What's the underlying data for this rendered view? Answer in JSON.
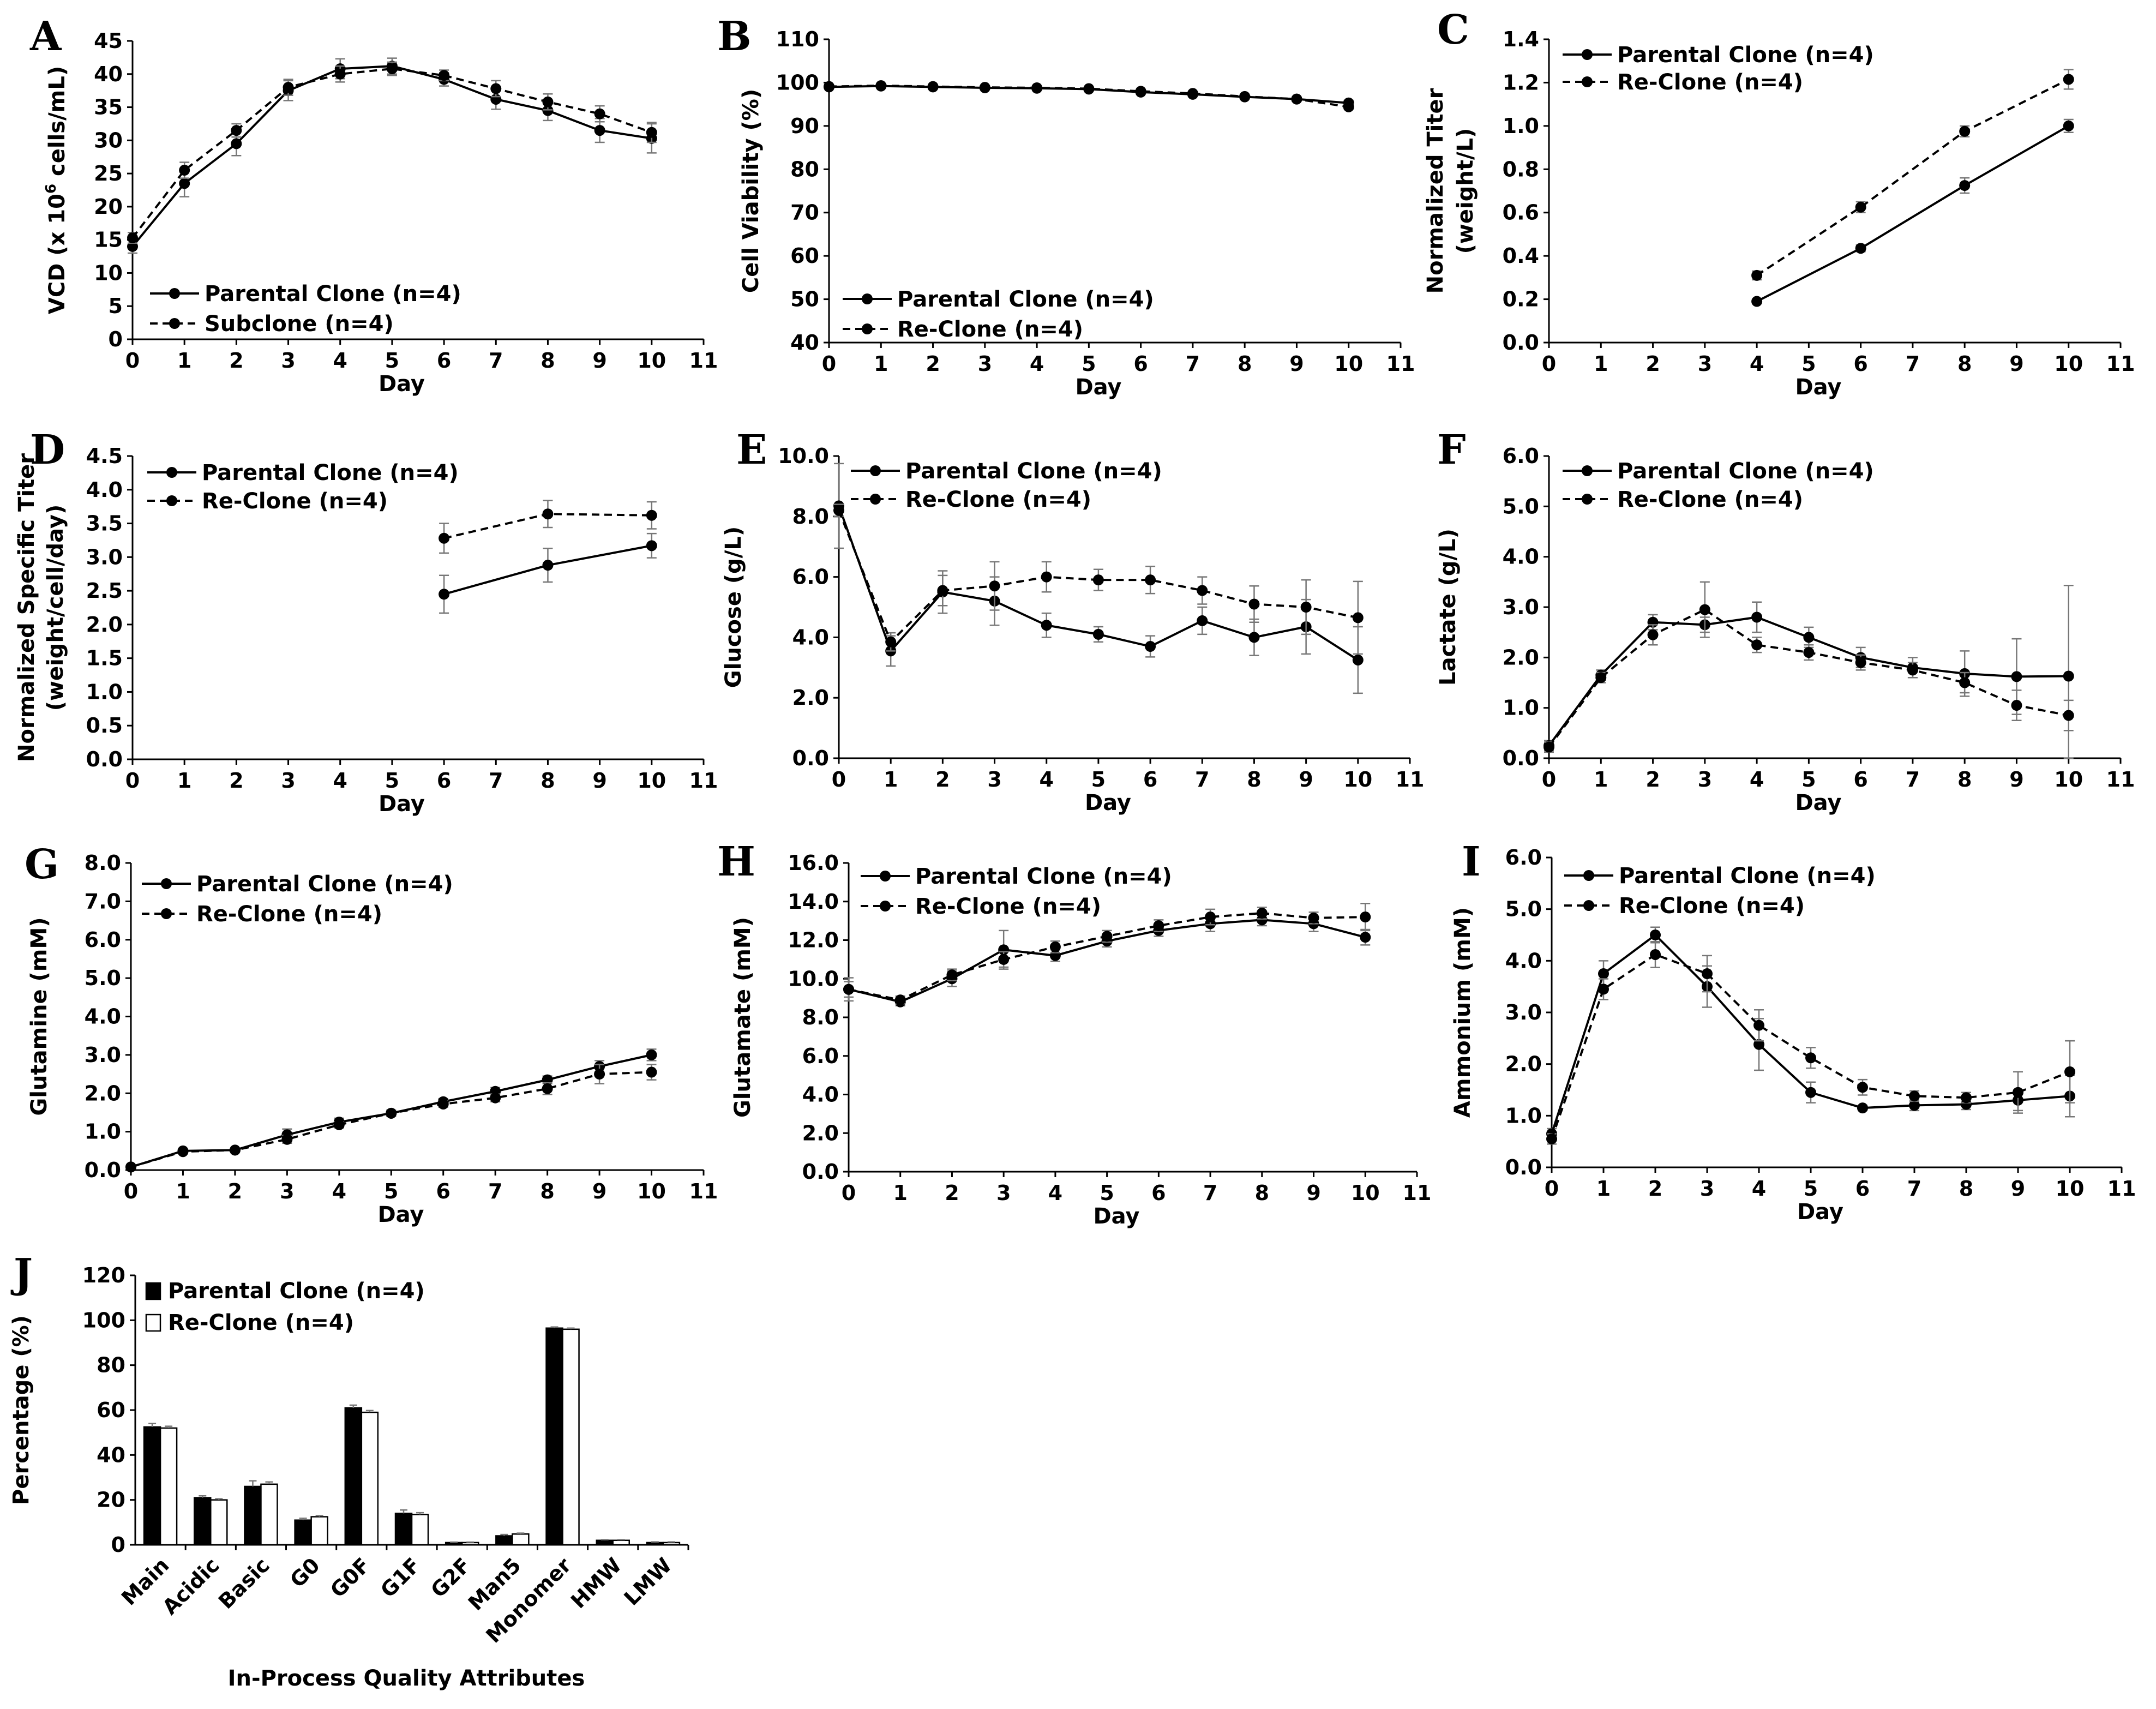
{
  "chart_data": [
    {
      "panel": "A",
      "type": "line",
      "xlabel": "Day",
      "ylabel_main": "VCD (x 10",
      "ylabel_sup": "6",
      "ylabel_tail": " cells/mL)",
      "xlim": [
        0,
        11
      ],
      "ylim": [
        0,
        45
      ],
      "xticks": [
        "0",
        "1",
        "2",
        "3",
        "4",
        "5",
        "6",
        "7",
        "8",
        "9",
        "10",
        "11"
      ],
      "yticks": [
        "0",
        "5",
        "10",
        "15",
        "20",
        "25",
        "30",
        "35",
        "40",
        "45"
      ],
      "legend_position": "bottom-left",
      "series": [
        {
          "name": "Parental Clone (n=4)",
          "style": "solid",
          "x": [
            0,
            1,
            2,
            3,
            4,
            5,
            6,
            7,
            8,
            9,
            10
          ],
          "y": [
            14.0,
            23.5,
            29.5,
            37.5,
            40.8,
            41.2,
            39.2,
            36.2,
            34.5,
            31.5,
            30.3
          ],
          "err": [
            1.0,
            2.0,
            1.8,
            1.5,
            1.5,
            1.2,
            1.0,
            1.5,
            1.5,
            1.8,
            2.2
          ]
        },
        {
          "name": "Subclone (n=4)",
          "style": "dashed",
          "x": [
            0,
            1,
            2,
            3,
            4,
            5,
            6,
            7,
            8,
            9,
            10
          ],
          "y": [
            15.3,
            25.5,
            31.5,
            38.0,
            40.0,
            40.8,
            39.8,
            37.8,
            35.8,
            34.0,
            31.2
          ],
          "err": [
            0.8,
            1.2,
            1.0,
            1.2,
            1.2,
            1.0,
            0.8,
            1.2,
            1.2,
            1.2,
            1.5
          ]
        }
      ]
    },
    {
      "panel": "B",
      "type": "line",
      "xlabel": "Day",
      "ylabel": "Cell Viability (%)",
      "xlim": [
        0,
        11
      ],
      "ylim": [
        40,
        110
      ],
      "xticks": [
        "0",
        "1",
        "2",
        "3",
        "4",
        "5",
        "6",
        "7",
        "8",
        "9",
        "10",
        "11"
      ],
      "yticks": [
        "40",
        "50",
        "60",
        "70",
        "80",
        "90",
        "100",
        "110"
      ],
      "legend_position": "bottom-left",
      "series": [
        {
          "name": "Parental Clone (n=4)",
          "style": "solid",
          "x": [
            0,
            1,
            2,
            3,
            4,
            5,
            6,
            7,
            8,
            9,
            10
          ],
          "y": [
            99.0,
            99.2,
            99.0,
            98.8,
            98.7,
            98.5,
            97.8,
            97.3,
            96.7,
            96.2,
            95.3
          ],
          "err": [
            0.3,
            0.3,
            0.3,
            0.3,
            0.3,
            0.3,
            0.4,
            0.4,
            0.4,
            0.5,
            0.6
          ]
        },
        {
          "name": "Re-Clone (n=4)",
          "style": "dashed",
          "x": [
            0,
            1,
            2,
            3,
            4,
            5,
            6,
            7,
            8,
            9,
            10
          ],
          "y": [
            99.1,
            99.3,
            99.1,
            98.9,
            98.8,
            98.6,
            98.0,
            97.5,
            96.8,
            96.2,
            94.4
          ],
          "err": [
            0.3,
            0.3,
            0.3,
            0.3,
            0.3,
            0.3,
            0.4,
            0.4,
            0.4,
            0.5,
            0.6
          ]
        }
      ]
    },
    {
      "panel": "C",
      "type": "line",
      "xlabel": "Day",
      "ylabel_line1": "Normalized Titer",
      "ylabel_line2": "(weight/L)",
      "xlim": [
        0,
        11
      ],
      "ylim": [
        0,
        1.4
      ],
      "xticks": [
        "0",
        "1",
        "2",
        "3",
        "4",
        "5",
        "6",
        "7",
        "8",
        "9",
        "10",
        "11"
      ],
      "yticks": [
        "0.0",
        "0.2",
        "0.4",
        "0.6",
        "0.8",
        "1.0",
        "1.2",
        "1.4"
      ],
      "legend_position": "top-left",
      "series": [
        {
          "name": "Parental Clone (n=4)",
          "style": "solid",
          "x": [
            4,
            6,
            8,
            10
          ],
          "y": [
            0.19,
            0.435,
            0.725,
            1.0
          ],
          "err": [
            0.01,
            0.015,
            0.035,
            0.03
          ]
        },
        {
          "name": "Re-Clone (n=4)",
          "style": "dashed",
          "x": [
            4,
            6,
            8,
            10
          ],
          "y": [
            0.31,
            0.625,
            0.975,
            1.215
          ],
          "err": [
            0.02,
            0.025,
            0.025,
            0.045
          ]
        }
      ]
    },
    {
      "panel": "D",
      "type": "line",
      "xlabel": "Day",
      "ylabel_line1": "Normalized Specific Titer",
      "ylabel_line2": "(weight/cell/day)",
      "xlim": [
        0,
        11
      ],
      "ylim": [
        0,
        4.5
      ],
      "xticks": [
        "0",
        "1",
        "2",
        "3",
        "4",
        "5",
        "6",
        "7",
        "8",
        "9",
        "10",
        "11"
      ],
      "yticks": [
        "0.0",
        "0.5",
        "1.0",
        "1.5",
        "2.0",
        "2.5",
        "3.0",
        "3.5",
        "4.0",
        "4.5"
      ],
      "legend_position": "top-left",
      "series": [
        {
          "name": "Parental Clone (n=4)",
          "style": "solid",
          "x": [
            6,
            8,
            10
          ],
          "y": [
            2.45,
            2.88,
            3.17
          ],
          "err": [
            0.28,
            0.25,
            0.18
          ]
        },
        {
          "name": "Re-Clone (n=4)",
          "style": "dashed",
          "x": [
            6,
            8,
            10
          ],
          "y": [
            3.28,
            3.64,
            3.62
          ],
          "err": [
            0.22,
            0.2,
            0.2
          ]
        }
      ]
    },
    {
      "panel": "E",
      "type": "line",
      "xlabel": "Day",
      "ylabel": "Glucose (g/L)",
      "xlim": [
        0,
        11
      ],
      "ylim": [
        0,
        10
      ],
      "xticks": [
        "0",
        "1",
        "2",
        "3",
        "4",
        "5",
        "6",
        "7",
        "8",
        "9",
        "10",
        "11"
      ],
      "yticks": [
        "0.0",
        "2.0",
        "4.0",
        "6.0",
        "8.0",
        "10.0"
      ],
      "legend_position": "top-left",
      "series": [
        {
          "name": "Parental Clone (n=4)",
          "style": "solid",
          "x": [
            0,
            1,
            2,
            3,
            4,
            5,
            6,
            7,
            8,
            9,
            10
          ],
          "y": [
            8.35,
            3.55,
            5.5,
            5.2,
            4.4,
            4.1,
            3.7,
            4.55,
            4.0,
            4.35,
            3.25
          ],
          "err": [
            1.4,
            0.5,
            0.7,
            0.8,
            0.4,
            0.25,
            0.35,
            0.45,
            0.6,
            0.9,
            1.1
          ]
        },
        {
          "name": "Re-Clone (n=4)",
          "style": "dashed",
          "x": [
            0,
            1,
            2,
            3,
            4,
            5,
            6,
            7,
            8,
            9,
            10
          ],
          "y": [
            8.2,
            3.85,
            5.55,
            5.7,
            6.0,
            5.9,
            5.9,
            5.55,
            5.1,
            5.0,
            4.65
          ],
          "err": [
            0.2,
            0.3,
            0.5,
            0.8,
            0.5,
            0.35,
            0.45,
            0.45,
            0.6,
            0.9,
            1.2
          ]
        }
      ]
    },
    {
      "panel": "F",
      "type": "line",
      "xlabel": "Day",
      "ylabel": "Lactate (g/L)",
      "xlim": [
        0,
        11
      ],
      "ylim": [
        0,
        6
      ],
      "xticks": [
        "0",
        "1",
        "2",
        "3",
        "4",
        "5",
        "6",
        "7",
        "8",
        "9",
        "10",
        "11"
      ],
      "yticks": [
        "0.0",
        "1.0",
        "2.0",
        "3.0",
        "4.0",
        "5.0",
        "6.0"
      ],
      "legend_position": "top-left",
      "series": [
        {
          "name": "Parental Clone (n=4)",
          "style": "solid",
          "x": [
            0,
            1,
            2,
            3,
            4,
            5,
            6,
            7,
            8,
            9,
            10
          ],
          "y": [
            0.25,
            1.65,
            2.7,
            2.65,
            2.8,
            2.4,
            2.0,
            1.8,
            1.68,
            1.62,
            1.63
          ],
          "err": [
            0.1,
            0.1,
            0.15,
            0.15,
            0.3,
            0.2,
            0.2,
            0.2,
            0.45,
            0.75,
            1.8
          ]
        },
        {
          "name": "Re-Clone (n=4)",
          "style": "dashed",
          "x": [
            0,
            1,
            2,
            3,
            4,
            5,
            6,
            7,
            8,
            9,
            10
          ],
          "y": [
            0.22,
            1.6,
            2.45,
            2.95,
            2.25,
            2.1,
            1.9,
            1.75,
            1.5,
            1.05,
            0.85
          ],
          "err": [
            0.1,
            0.1,
            0.2,
            0.55,
            0.15,
            0.15,
            0.15,
            0.15,
            0.2,
            0.3,
            0.3
          ]
        }
      ]
    },
    {
      "panel": "G",
      "type": "line",
      "xlabel": "Day",
      "ylabel": "Glutamine (mM)",
      "xlim": [
        0,
        11
      ],
      "ylim": [
        0,
        8
      ],
      "xticks": [
        "0",
        "1",
        "2",
        "3",
        "4",
        "5",
        "6",
        "7",
        "8",
        "9",
        "10",
        "11"
      ],
      "yticks": [
        "0.0",
        "1.0",
        "2.0",
        "3.0",
        "4.0",
        "5.0",
        "6.0",
        "7.0",
        "8.0"
      ],
      "legend_position": "top-left",
      "series": [
        {
          "name": "Parental Clone (n=4)",
          "style": "solid",
          "x": [
            0,
            1,
            2,
            3,
            4,
            5,
            6,
            7,
            8,
            9,
            10
          ],
          "y": [
            0.08,
            0.5,
            0.52,
            0.92,
            1.25,
            1.48,
            1.78,
            2.05,
            2.35,
            2.7,
            3.0
          ],
          "err": [
            0.02,
            0.03,
            0.03,
            0.15,
            0.1,
            0.08,
            0.08,
            0.1,
            0.1,
            0.15,
            0.15
          ]
        },
        {
          "name": "Re-Clone (n=4)",
          "style": "dashed",
          "x": [
            0,
            1,
            2,
            3,
            4,
            5,
            6,
            7,
            8,
            9,
            10
          ],
          "y": [
            0.08,
            0.48,
            0.52,
            0.8,
            1.18,
            1.48,
            1.72,
            1.88,
            2.12,
            2.5,
            2.55
          ],
          "err": [
            0.02,
            0.03,
            0.03,
            0.1,
            0.08,
            0.08,
            0.08,
            0.1,
            0.15,
            0.25,
            0.2
          ]
        }
      ]
    },
    {
      "panel": "H",
      "type": "line",
      "xlabel": "Day",
      "ylabel": "Glutamate (mM)",
      "xlim": [
        0,
        11
      ],
      "ylim": [
        0,
        16
      ],
      "xticks": [
        "0",
        "1",
        "2",
        "3",
        "4",
        "5",
        "6",
        "7",
        "8",
        "9",
        "10",
        "11"
      ],
      "yticks": [
        "0.0",
        "2.0",
        "4.0",
        "6.0",
        "8.0",
        "10.0",
        "12.0",
        "14.0",
        "16.0"
      ],
      "legend_position": "top-left",
      "series": [
        {
          "name": "Parental Clone (n=4)",
          "style": "solid",
          "x": [
            0,
            1,
            2,
            3,
            4,
            5,
            6,
            7,
            8,
            9,
            10
          ],
          "y": [
            9.45,
            8.8,
            10.0,
            11.5,
            11.2,
            11.95,
            12.5,
            12.85,
            13.05,
            12.85,
            12.15
          ],
          "err": [
            0.6,
            0.2,
            0.4,
            1.0,
            0.3,
            0.3,
            0.3,
            0.4,
            0.3,
            0.4,
            0.4
          ]
        },
        {
          "name": "Re-Clone (n=4)",
          "style": "dashed",
          "x": [
            0,
            1,
            2,
            3,
            4,
            5,
            6,
            7,
            8,
            9,
            10
          ],
          "y": [
            9.45,
            8.9,
            10.2,
            11.0,
            11.65,
            12.2,
            12.75,
            13.2,
            13.4,
            13.15,
            13.2
          ],
          "err": [
            0.4,
            0.2,
            0.3,
            0.4,
            0.3,
            0.3,
            0.3,
            0.4,
            0.3,
            0.3,
            0.7
          ]
        }
      ]
    },
    {
      "panel": "I",
      "type": "line",
      "xlabel": "Day",
      "ylabel": "Ammonium (mM)",
      "xlim": [
        0,
        11
      ],
      "ylim": [
        0,
        6
      ],
      "xticks": [
        "0",
        "1",
        "2",
        "3",
        "4",
        "5",
        "6",
        "7",
        "8",
        "9",
        "10",
        "11"
      ],
      "yticks": [
        "0.0",
        "1.0",
        "2.0",
        "3.0",
        "4.0",
        "5.0",
        "6.0"
      ],
      "legend_position": "top-left",
      "series": [
        {
          "name": "Parental Clone (n=4)",
          "style": "solid",
          "x": [
            0,
            1,
            2,
            3,
            4,
            5,
            6,
            7,
            8,
            9,
            10
          ],
          "y": [
            0.65,
            3.75,
            4.5,
            3.5,
            2.38,
            1.45,
            1.15,
            1.2,
            1.22,
            1.3,
            1.38
          ],
          "err": [
            0.1,
            0.25,
            0.15,
            0.4,
            0.5,
            0.2,
            0.05,
            0.1,
            0.1,
            0.2,
            0.4
          ]
        },
        {
          "name": "Re-Clone (n=4)",
          "style": "dashed",
          "x": [
            0,
            1,
            2,
            3,
            4,
            5,
            6,
            7,
            8,
            9,
            10
          ],
          "y": [
            0.55,
            3.45,
            4.12,
            3.75,
            2.75,
            2.12,
            1.55,
            1.38,
            1.35,
            1.45,
            1.85
          ],
          "err": [
            0.1,
            0.2,
            0.25,
            0.35,
            0.3,
            0.2,
            0.15,
            0.1,
            0.1,
            0.4,
            0.6
          ]
        }
      ]
    },
    {
      "panel": "J",
      "type": "bar",
      "xlabel": "In-Process Quality Attributes",
      "ylabel": "Percentage (%)",
      "ylim": [
        0,
        120
      ],
      "yticks": [
        "0",
        "20",
        "40",
        "60",
        "80",
        "100",
        "120"
      ],
      "categories": [
        "Main",
        "Acidic",
        "Basic",
        "G0",
        "G0F",
        "G1F",
        "G2F",
        "Man5",
        "Monomer",
        "HMW",
        "LMW"
      ],
      "legend_position": "top-left",
      "series": [
        {
          "name": "Parental Clone (n=4)",
          "fill": "black",
          "values": [
            52.5,
            21.0,
            26.0,
            11.0,
            61.0,
            14.0,
            1.0,
            4.0,
            96.5,
            2.0,
            1.0
          ],
          "err": [
            1.5,
            0.8,
            2.5,
            0.8,
            1.2,
            1.5,
            0.2,
            0.6,
            0.5,
            0.3,
            0.3
          ]
        },
        {
          "name": "Re-Clone (n=4)",
          "fill": "white",
          "values": [
            52.0,
            20.0,
            27.0,
            12.5,
            59.0,
            13.5,
            1.0,
            4.8,
            96.0,
            2.0,
            1.0
          ],
          "err": [
            0.8,
            0.5,
            1.0,
            0.5,
            0.8,
            0.8,
            0.2,
            0.4,
            0.5,
            0.3,
            0.3
          ]
        }
      ]
    }
  ],
  "panel_letters": [
    "A",
    "B",
    "C",
    "D",
    "E",
    "F",
    "G",
    "H",
    "I",
    "J"
  ],
  "colors": {
    "line": "#000000",
    "errorbar": "#777777",
    "background": "#ffffff"
  }
}
